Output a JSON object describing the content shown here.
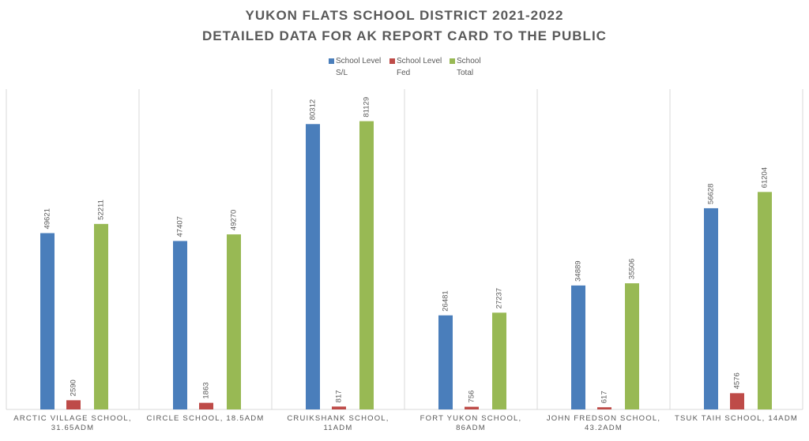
{
  "chart_data": {
    "type": "bar",
    "title": "YUKON FLATS SCHOOL DISTRICT 2021-2022",
    "subtitle": "DETAILED DATA FOR AK REPORT CARD TO THE PUBLIC",
    "categories": [
      "ARCTIC VILLAGE SCHOOL, 31.65ADM",
      "CIRCLE SCHOOL, 18.5ADM",
      "CRUIKSHANK SCHOOL, 11ADM",
      "FORT YUKON SCHOOL, 86ADM",
      "JOHN FREDSON SCHOOL, 43.2ADM",
      "TSUK TAIH SCHOOL, 14ADM"
    ],
    "series": [
      {
        "name": "School Level S/L",
        "color": "#4a7ebb",
        "values": [
          49621,
          47407,
          80312,
          26481,
          34889,
          56628
        ]
      },
      {
        "name": "School Level Fed",
        "color": "#be4b48",
        "values": [
          2590,
          1863,
          817,
          756,
          617,
          4576
        ]
      },
      {
        "name": "School Total",
        "color": "#98b954",
        "values": [
          52211,
          49270,
          81129,
          27237,
          35506,
          61204
        ]
      }
    ],
    "legend": "top",
    "grid": false
  }
}
